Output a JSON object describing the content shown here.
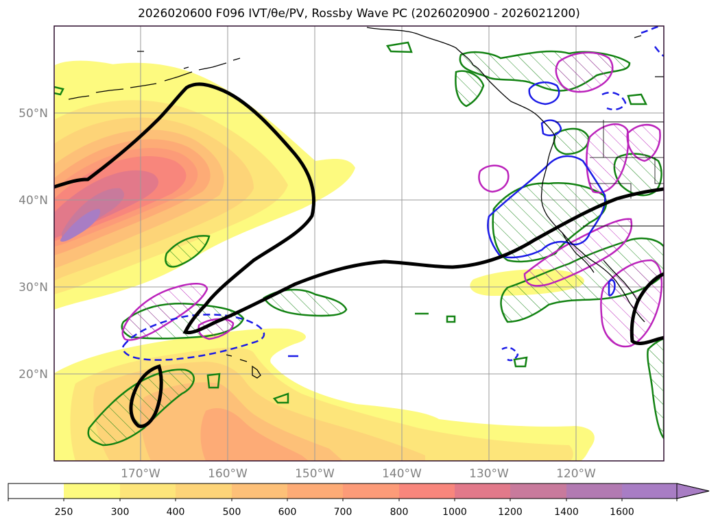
{
  "title": "2026020600 F096 IVT/θe/PV, Rossby Wave PC (2026020900 - 2026021200)",
  "colors": {
    "ivt_levels": [
      "#ffffff",
      "#fdfa7f",
      "#fde57a",
      "#fdd478",
      "#fdc078",
      "#fdab76",
      "#fc9b78",
      "#f8867c",
      "#e2798a",
      "#c87a9c",
      "#a87dc4"
    ],
    "contour_pv": "#000000",
    "contour_green": "#128212",
    "contour_magenta": "#bb22bb",
    "contour_blue": "#1a1ae6",
    "coast": "#000000",
    "grid": "#9a9a9a",
    "tick_label": "#808080"
  },
  "axes": {
    "lat_labels": [
      "50°N",
      "40°N",
      "30°N",
      "20°N"
    ],
    "lon_labels": [
      "170°W",
      "160°W",
      "150°W",
      "140°W",
      "130°W",
      "120°W"
    ]
  },
  "colorbar": {
    "ticks": [
      "250",
      "300",
      "400",
      "500",
      "600",
      "700",
      "800",
      "1000",
      "1200",
      "1400",
      "1600"
    ],
    "extend": "max"
  }
}
